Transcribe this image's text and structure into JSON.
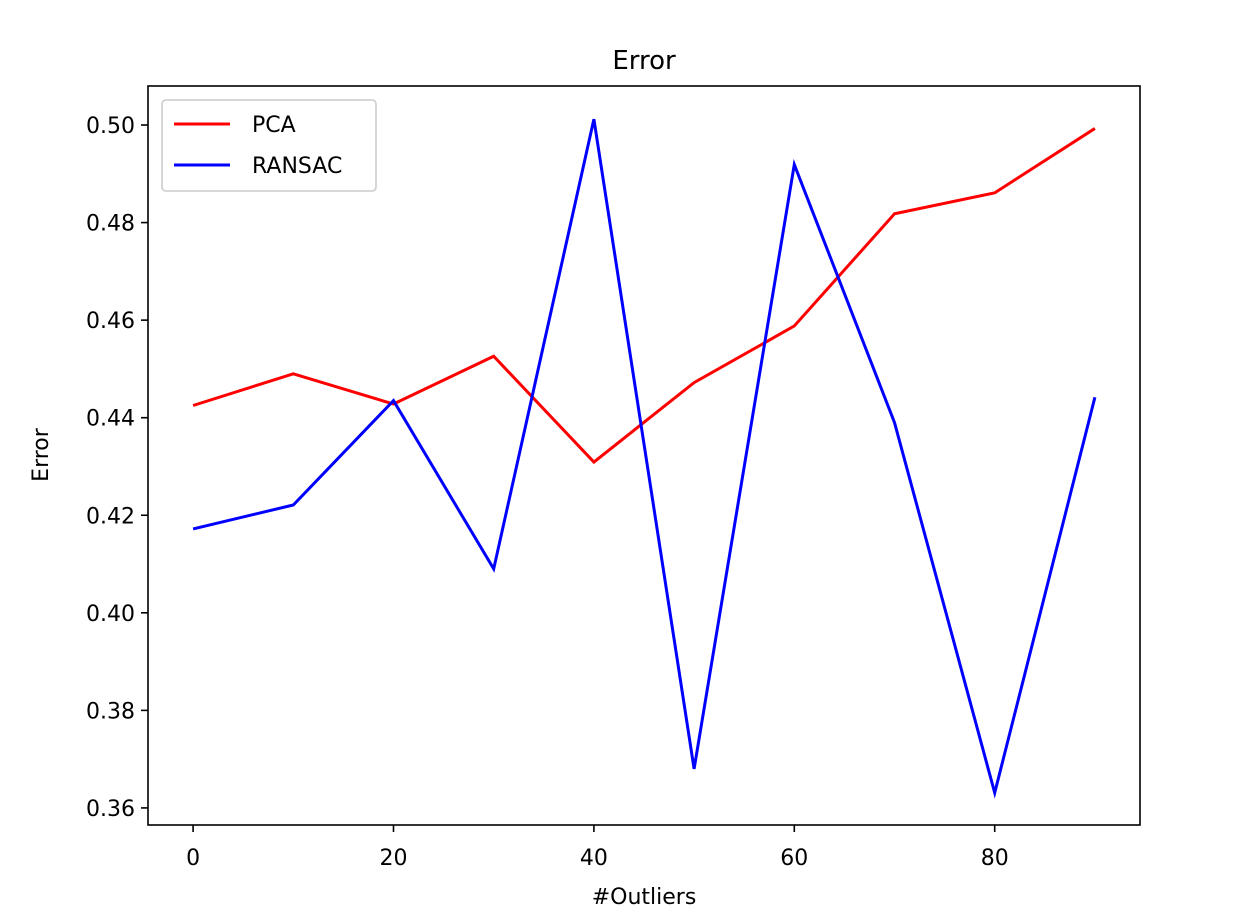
{
  "chart_data": {
    "type": "line",
    "title": "Error",
    "xlabel": "#Outliers",
    "ylabel": "Error",
    "x": [
      0,
      10,
      20,
      30,
      40,
      50,
      60,
      70,
      80,
      90
    ],
    "xlim": [
      -4.5,
      94.5
    ],
    "ylim": [
      0.3565,
      0.508
    ],
    "xticks": [
      0,
      20,
      40,
      60,
      80
    ],
    "xtick_labels": [
      "0",
      "20",
      "40",
      "60",
      "80"
    ],
    "yticks": [
      0.36,
      0.38,
      0.4,
      0.42,
      0.44,
      0.46,
      0.48,
      0.5
    ],
    "ytick_labels": [
      "0.36",
      "0.38",
      "0.40",
      "0.42",
      "0.44",
      "0.46",
      "0.48",
      "0.50"
    ],
    "grid": false,
    "legend_position": "upper-left",
    "series": [
      {
        "name": "PCA",
        "color": "#ff0000",
        "values": [
          0.4425,
          0.449,
          0.4428,
          0.4526,
          0.4309,
          0.4472,
          0.4588,
          0.4818,
          0.4861,
          0.4993
        ]
      },
      {
        "name": "RANSAC",
        "color": "#0000ff",
        "values": [
          0.4172,
          0.4221,
          0.4435,
          0.409,
          0.5012,
          0.368,
          0.4919,
          0.439,
          0.3631,
          0.4442
        ]
      }
    ]
  }
}
